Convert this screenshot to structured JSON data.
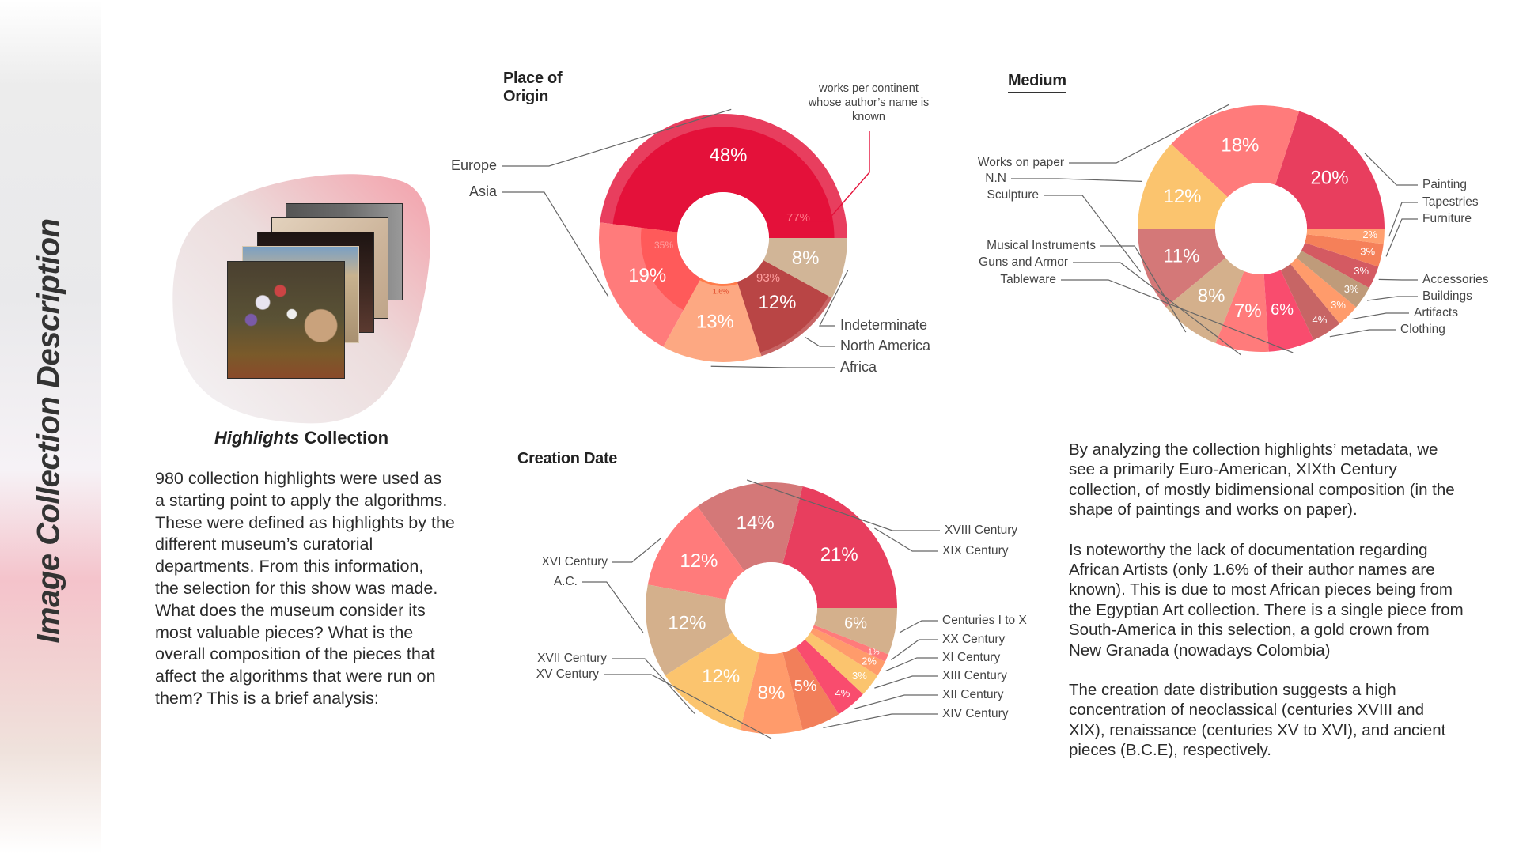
{
  "sidebar": {
    "title": "Image Collection Description"
  },
  "collection": {
    "title_italic": "Highlights",
    "title_rest": "Collection",
    "description_lines": [
      "980 collection highlights were used as",
      "a starting point to apply the algorithms.",
      "These were defined as highlights by the",
      "different museum’s curatorial",
      "departments. From this information,",
      "the selection for this show was made.",
      "What does the museum consider its",
      "most valuable pieces? What is the",
      "overall composition of the pieces that",
      "affect the algorithms that were run on",
      "them? This is a brief analysis:"
    ]
  },
  "analysis": {
    "paragraphs": [
      [
        "By analyzing the collection highlights’ metadata, we",
        "see a primarily Euro-American, XIXth Century",
        "collection, of mostly bidimensional composition (in the",
        "shape of paintings and works on paper)."
      ],
      [
        "Is noteworthy the lack of documentation regarding",
        "African Artists (only 1.6% of their author names are",
        "known). This is due to most African pieces being from",
        "the Egyptian Art collection. There is a single piece from",
        "South-America in this selection, a gold crown from",
        "New Granada (nowadays Colombia)"
      ],
      [
        "The creation date distribution suggests a high",
        "concentration of neoclassical (centuries XVIII and",
        "XIX), renaissance (centuries XV to XVI), and ancient",
        "pieces (B.C.E), respectively."
      ]
    ]
  },
  "chart_data": [
    {
      "type": "pie",
      "title": "Place of Origin",
      "annotation": "works per continent whose author’s name is known",
      "annotation_color": "#e4113a",
      "slices": [
        {
          "label": "Europe",
          "value": 48,
          "color": "#e83e5e",
          "known_pct": 77,
          "known_color": "#e4113a"
        },
        {
          "label": "Asia",
          "value": 19,
          "color": "#ff7b7b",
          "known_pct": 35,
          "known_color": "#ff5a5a"
        },
        {
          "label": "Africa",
          "value": 13,
          "color": "#fda882",
          "known_pct": 1.6,
          "known_color": "#ff7b4a"
        },
        {
          "label": "North America",
          "value": 12,
          "color": "#c76565",
          "known_pct": 93,
          "known_color": "#b94545"
        },
        {
          "label": "Indeterminate",
          "value": 8,
          "color": "#d1b597"
        }
      ]
    },
    {
      "type": "pie",
      "title": "Medium",
      "slices": [
        {
          "label": "Painting",
          "value": 20,
          "color": "#e83e5e"
        },
        {
          "label": "Works on paper",
          "value": 18,
          "color": "#ff7b7b"
        },
        {
          "label": "N.N",
          "value": 12,
          "color": "#fbc46e"
        },
        {
          "label": "Sculpture",
          "value": 11,
          "color": "#d47878"
        },
        {
          "label": "Musical Instruments",
          "value": 8,
          "color": "#d4b08c"
        },
        {
          "label": "Guns and Armor",
          "value": 7,
          "color": "#ff7b7b"
        },
        {
          "label": "Tableware",
          "value": 6,
          "color": "#f94c6e"
        },
        {
          "label": "Clothing",
          "value": 4,
          "color": "#c76565"
        },
        {
          "label": "Artifacts",
          "value": 3,
          "color": "#ff9b6b"
        },
        {
          "label": "Buildings",
          "value": 3,
          "color": "#bf9b7a"
        },
        {
          "label": "Accessories",
          "value": 3,
          "color": "#d45a62"
        },
        {
          "label": "Furniture",
          "value": 3,
          "color": "#f58059"
        },
        {
          "label": "Tapestries",
          "value": 2,
          "color": "#ffa070"
        }
      ]
    },
    {
      "type": "pie",
      "title": "Creation Date",
      "slices": [
        {
          "label": "XIX Century",
          "value": 21,
          "color": "#e83e5e"
        },
        {
          "label": "XVIII Century",
          "value": 14,
          "color": "#d47878"
        },
        {
          "label": "XVI Century",
          "value": 12,
          "color": "#ff7b7b"
        },
        {
          "label": "A.C.",
          "value": 12,
          "color": "#d4b08c"
        },
        {
          "label": "XVII Century",
          "value": 12,
          "color": "#fbc46e"
        },
        {
          "label": "XV Century",
          "value": 8,
          "color": "#ff9b6b"
        },
        {
          "label": "XIV Century",
          "value": 5,
          "color": "#f27f5a"
        },
        {
          "label": "XII Century",
          "value": 4,
          "color": "#f94c6e"
        },
        {
          "label": "XIII Century",
          "value": 3,
          "color": "#fbc46e"
        },
        {
          "label": "XI Century",
          "value": 2,
          "color": "#ff9b6b"
        },
        {
          "label": "XX Century",
          "value": 1,
          "color": "#ff7b7b"
        },
        {
          "label": "Centuries I to X",
          "value": 6,
          "color": "#d4b08c"
        }
      ]
    }
  ]
}
